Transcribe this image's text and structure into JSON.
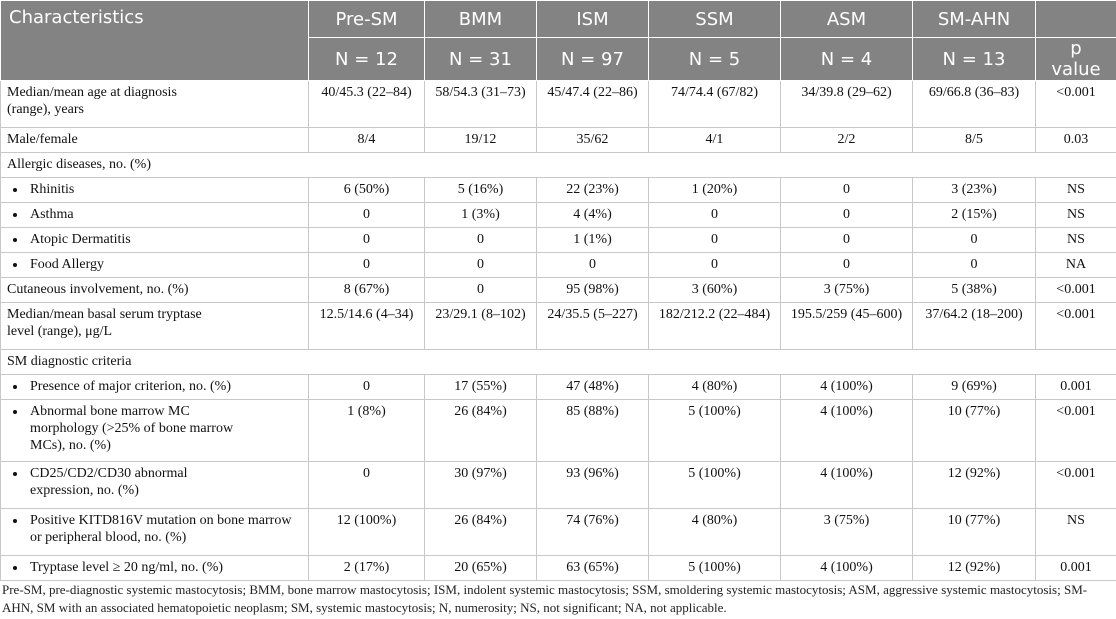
{
  "header": {
    "columns": [
      "Characteristics",
      "Pre-SM",
      "BMM",
      "ISM",
      "SSM",
      "ASM",
      "SM-AHN"
    ],
    "n_row": [
      "N = 12",
      "N = 31",
      "N = 97",
      "N = 5",
      "N = 4",
      "N = 13",
      "p value"
    ]
  },
  "table": {
    "rows": [
      {
        "label": "Median/mean age at diagnosis (range), years",
        "values": [
          "40/45.3 (22–84)",
          "58/54.3 (31–73)",
          "45/47.4 (22–86)",
          "74/74.4 (67/82)",
          "34/39.8 (29–62)",
          "69/66.8 (36–83)",
          "<0.001"
        ]
      },
      {
        "label": "Male/female",
        "values": [
          "8/4",
          "19/12",
          "35/62",
          "4/1",
          "2/2",
          "8/5",
          "0.03"
        ]
      },
      {
        "label": "Allergic diseases, no. (%)"
      },
      {
        "label": "Rhinitis",
        "bullet": true,
        "values": [
          "6 (50%)",
          "5 (16%)",
          "22 (23%)",
          "1 (20%)",
          "0",
          "3 (23%)",
          "NS"
        ]
      },
      {
        "label": "Asthma",
        "bullet": true,
        "values": [
          "0",
          "1 (3%)",
          "4 (4%)",
          "0",
          "0",
          "2 (15%)",
          "NS"
        ]
      },
      {
        "label": "Atopic Dermatitis",
        "bullet": true,
        "values": [
          "0",
          "0",
          "1 (1%)",
          "0",
          "0",
          "0",
          "NS"
        ]
      },
      {
        "label": "Food Allergy",
        "bullet": true,
        "values": [
          "0",
          "0",
          "0",
          "0",
          "0",
          "0",
          "NA"
        ]
      },
      {
        "label": "Cutaneous involvement, no. (%)",
        "values": [
          "8 (67%)",
          "0",
          "95 (98%)",
          "3 (60%)",
          "3 (75%)",
          "5 (38%)",
          "<0.001"
        ]
      },
      {
        "label": "Median/mean basal serum tryptase level (range), μg/L",
        "values": [
          "12.5/14.6 (4–34)",
          "23/29.1 (8–102)",
          "24/35.5 (5–227)",
          "182/212.2 (22–484)",
          "195.5/259 (45–600)",
          "37/64.2 (18–200)",
          "<0.001"
        ]
      },
      {
        "label": "SM diagnostic criteria"
      },
      {
        "label": "Presence of major criterion, no. (%)",
        "bullet": true,
        "values": [
          "0",
          "17 (55%)",
          "47 (48%)",
          "4 (80%)",
          "4 (100%)",
          "9 (69%)",
          "0.001"
        ]
      },
      {
        "label": "Abnormal bone marrow MC morphology (>25% of bone marrow MCs), no. (%)",
        "bullet": true,
        "values": [
          "1 (8%)",
          "26 (84%)",
          "85 (88%)",
          "5 (100%)",
          "4 (100%)",
          "10 (77%)",
          "<0.001"
        ]
      },
      {
        "label": "CD25/CD2/CD30 abnormal expression, no. (%)",
        "bullet": true,
        "values": [
          "0",
          "30 (97%)",
          "93 (96%)",
          "5 (100%)",
          "4 (100%)",
          "12 (92%)",
          "<0.001"
        ]
      },
      {
        "label": "Positive KITD816V mutation on bone marrow or peripheral blood, no. (%)",
        "bullet": true,
        "values": [
          "12 (100%)",
          "26 (84%)",
          "74 (76%)",
          "4 (80%)",
          "3 (75%)",
          "10 (77%)",
          "NS"
        ]
      },
      {
        "label": "Tryptase level ≥ 20 ng/ml, no. (%)",
        "bullet": true,
        "values": [
          "2 (17%)",
          "20 (65%)",
          "63 (65%)",
          "5 (100%)",
          "4 (100%)",
          "12 (92%)",
          "0.001"
        ]
      }
    ]
  },
  "footnote": "Pre-SM, pre-diagnostic systemic mastocytosis; BMM, bone marrow mastocytosis; ISM, indolent systemic mastocytosis; SSM, smoldering systemic mastocytosis; ASM, aggressive systemic mastocytosis; SM-AHN, SM with an associated hematopoietic neoplasm; SM, systemic mastocytosis; N, numerosity; NS, not significant; NA, not applicable."
}
